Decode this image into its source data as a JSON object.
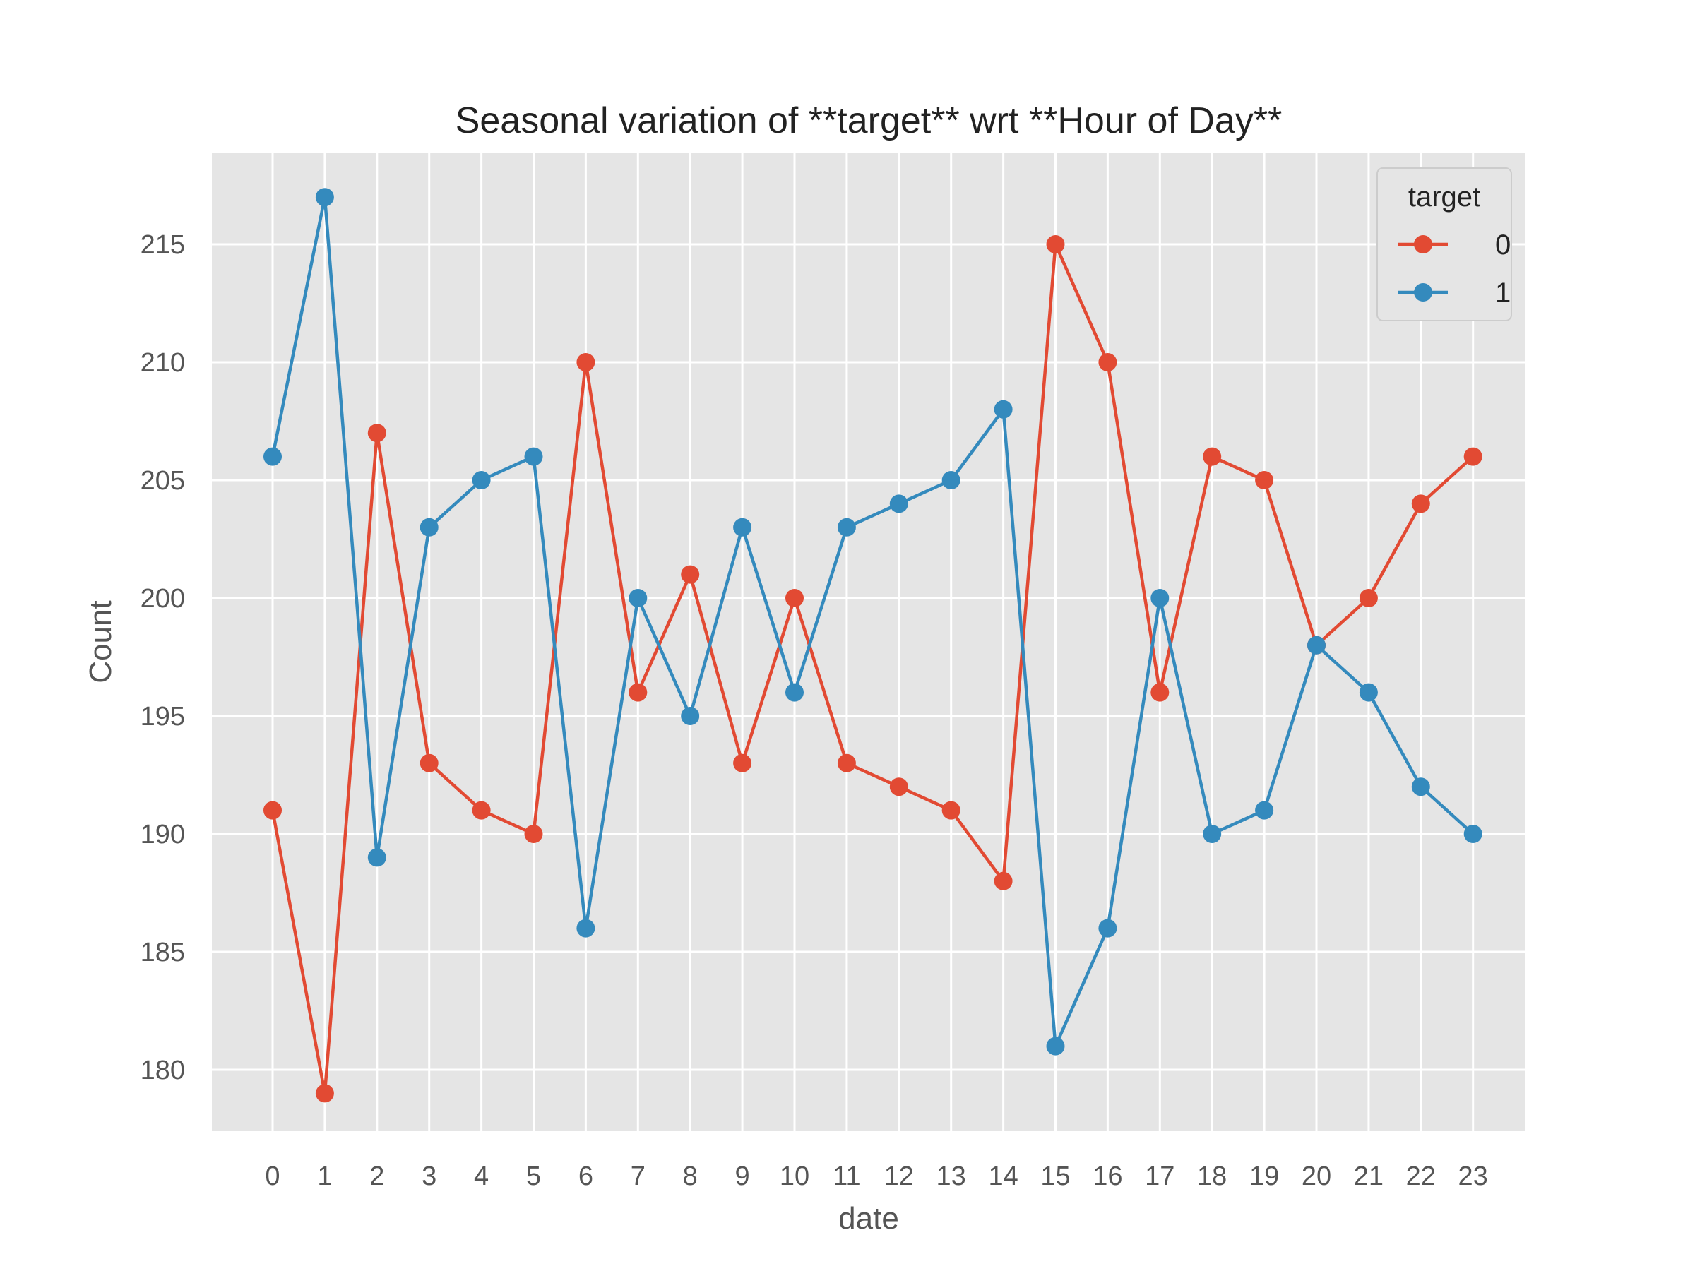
{
  "chart_data": {
    "type": "line",
    "title": "Seasonal variation of **target** wrt **Hour of Day**",
    "xlabel": "date",
    "ylabel": "Count",
    "x": [
      0,
      1,
      2,
      3,
      4,
      5,
      6,
      7,
      8,
      9,
      10,
      11,
      12,
      13,
      14,
      15,
      16,
      17,
      18,
      19,
      20,
      21,
      22,
      23
    ],
    "x_ticks": [
      "0",
      "1",
      "2",
      "3",
      "4",
      "5",
      "6",
      "7",
      "8",
      "9",
      "10",
      "11",
      "12",
      "13",
      "14",
      "15",
      "16",
      "17",
      "18",
      "19",
      "20",
      "21",
      "22",
      "23"
    ],
    "ylim": [
      177.5,
      219.7
    ],
    "y_ticks": [
      180,
      185,
      190,
      195,
      200,
      205,
      210,
      215
    ],
    "grid": true,
    "legend": {
      "title": "target",
      "placement": "top-right"
    },
    "series": [
      {
        "name": "0",
        "color": "#e24a33",
        "values": [
          191,
          179,
          207,
          193,
          191,
          190,
          210,
          196,
          201,
          193,
          200,
          193,
          192,
          191,
          188,
          215,
          210,
          196,
          206,
          205,
          198,
          200,
          204,
          206
        ]
      },
      {
        "name": "1",
        "color": "#348abd",
        "values": [
          206,
          217,
          189,
          203,
          205,
          206,
          186,
          200,
          195,
          203,
          196,
          203,
          204,
          205,
          208,
          181,
          186,
          200,
          190,
          191,
          198,
          196,
          192,
          190
        ]
      }
    ]
  }
}
